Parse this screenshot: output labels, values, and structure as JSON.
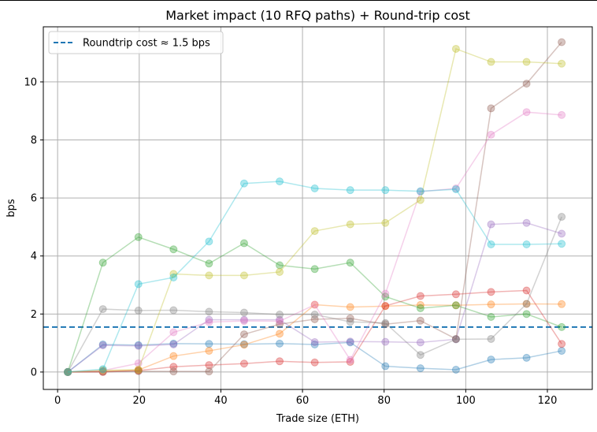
{
  "chart_data": {
    "type": "line",
    "title": "Market impact (10 RFQ paths) + Round-trip cost",
    "xlabel": "Trade size (ETH)",
    "ylabel": "bps",
    "xlim": [
      -3.5,
      131
    ],
    "ylim": [
      -0.6,
      11.9
    ],
    "xticks": [
      0,
      20,
      40,
      60,
      80,
      100,
      120
    ],
    "yticks": [
      0,
      2,
      4,
      6,
      8,
      10
    ],
    "grid": true,
    "legend_position": "top-left",
    "x": [
      2.5,
      11.1,
      19.8,
      28.4,
      37.1,
      45.7,
      54.4,
      63.0,
      71.7,
      80.3,
      88.9,
      97.6,
      106.2,
      114.9,
      123.5
    ],
    "reference_line": {
      "label": "Roundtrip cost ≈ 1.5 bps",
      "y": 1.55,
      "color": "#1f77b4",
      "style": "dashed"
    },
    "series": [
      {
        "color": "#1f77b4",
        "values": [
          0.0,
          0.95,
          0.93,
          0.98,
          0.97,
          0.96,
          0.98,
          0.95,
          1.02,
          0.2,
          0.13,
          0.08,
          0.43,
          0.49,
          0.73
        ]
      },
      {
        "color": "#ff7f0e",
        "values": [
          0.0,
          0.03,
          0.07,
          0.55,
          0.73,
          0.94,
          1.32,
          2.32,
          2.24,
          2.27,
          2.31,
          2.3,
          2.33,
          2.35,
          2.34
        ]
      },
      {
        "color": "#2ca02c",
        "values": [
          0.0,
          3.77,
          4.65,
          4.23,
          3.74,
          4.44,
          3.68,
          3.55,
          3.77,
          2.6,
          2.2,
          2.3,
          1.9,
          2.0,
          1.55
        ]
      },
      {
        "color": "#d62728",
        "values": [
          0.0,
          0.0,
          0.05,
          0.18,
          0.24,
          0.29,
          0.37,
          0.33,
          0.35,
          2.28,
          2.62,
          2.68,
          2.76,
          2.81,
          0.97
        ]
      },
      {
        "color": "#9467bd",
        "values": [
          0.0,
          0.92,
          0.9,
          0.95,
          1.8,
          1.8,
          1.8,
          1.03,
          1.05,
          1.04,
          1.02,
          1.13,
          5.09,
          5.14,
          4.77
        ]
      },
      {
        "color": "#8c564b",
        "values": [
          0.0,
          0.01,
          0.03,
          0.02,
          0.02,
          1.3,
          1.65,
          1.82,
          1.85,
          1.65,
          1.77,
          1.14,
          9.09,
          9.94,
          11.37
        ]
      },
      {
        "color": "#e377c2",
        "values": [
          0.0,
          0.05,
          0.3,
          1.37,
          1.72,
          1.76,
          1.75,
          2.32,
          0.42,
          2.7,
          6.22,
          6.33,
          8.18,
          8.96,
          8.86
        ]
      },
      {
        "color": "#7f7f7f",
        "values": [
          0.0,
          2.17,
          2.12,
          2.13,
          2.08,
          2.05,
          1.98,
          1.98,
          1.73,
          1.69,
          0.59,
          1.13,
          1.14,
          2.35,
          5.35
        ]
      },
      {
        "color": "#bcbd22",
        "values": [
          0.0,
          0.06,
          0.08,
          3.38,
          3.33,
          3.33,
          3.45,
          4.86,
          5.09,
          5.14,
          5.93,
          11.14,
          10.69,
          10.69,
          10.63
        ]
      },
      {
        "color": "#17becf",
        "values": [
          0.0,
          0.1,
          3.03,
          3.26,
          4.5,
          6.5,
          6.57,
          6.33,
          6.27,
          6.27,
          6.23,
          6.3,
          4.4,
          4.4,
          4.42
        ]
      }
    ]
  }
}
